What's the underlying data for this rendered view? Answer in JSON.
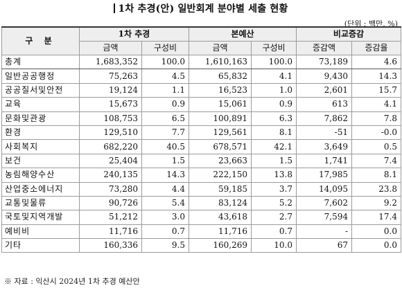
{
  "title": "1차 추경(안) 일반회계 분야별 세출 현황",
  "unit": "(단위 : 백만, %)",
  "headers": {
    "category": "구 분",
    "group1": "1차 추경",
    "group2": "본예산",
    "group3": "비교증감",
    "sub": [
      "금액",
      "구성비",
      "금액",
      "구성비",
      "증감액",
      "증감율"
    ]
  },
  "rows": [
    {
      "label": "총계",
      "v": [
        "1,683,352",
        "100.0",
        "1,610,163",
        "100.0",
        "73,189",
        "4.6"
      ]
    },
    {
      "label": "일반공공행정",
      "v": [
        "75,263",
        "4.5",
        "65,832",
        "4.1",
        "9,430",
        "14.3"
      ]
    },
    {
      "label": "공공질서및안전",
      "v": [
        "19,124",
        "1.1",
        "16,523",
        "1.0",
        "2,601",
        "15.7"
      ]
    },
    {
      "label": "교육",
      "v": [
        "15,673",
        "0.9",
        "15,061",
        "0.9",
        "613",
        "4.1"
      ]
    },
    {
      "label": "문화및관광",
      "v": [
        "108,753",
        "6.5",
        "100,891",
        "6.3",
        "7,862",
        "7.8"
      ]
    },
    {
      "label": "환경",
      "v": [
        "129,510",
        "7.7",
        "129,561",
        "8.1",
        "-51",
        "-0.0"
      ]
    },
    {
      "label": "사회복지",
      "v": [
        "682,220",
        "40.5",
        "678,571",
        "42.1",
        "3,649",
        "0.5"
      ]
    },
    {
      "label": "보건",
      "v": [
        "25,404",
        "1.5",
        "23,663",
        "1.5",
        "1,741",
        "7.4"
      ]
    },
    {
      "label": "농림해양수산",
      "v": [
        "240,135",
        "14.3",
        "222,150",
        "13.8",
        "17,985",
        "8.1"
      ]
    },
    {
      "label": "산업중소에너지",
      "v": [
        "73,280",
        "4.4",
        "59,185",
        "3.7",
        "14,095",
        "23.8"
      ]
    },
    {
      "label": "교통및물류",
      "v": [
        "90,726",
        "5.4",
        "83,124",
        "5.2",
        "7,602",
        "9.2"
      ]
    },
    {
      "label": "국토및지역개발",
      "v": [
        "51,212",
        "3.0",
        "43,618",
        "2.7",
        "7,594",
        "17.4"
      ]
    },
    {
      "label": "예비비",
      "v": [
        "11,716",
        "0.7",
        "11,716",
        "0.7",
        "-",
        "0.0"
      ]
    },
    {
      "label": "기타",
      "v": [
        "160,336",
        "9.5",
        "160,269",
        "10.0",
        "67",
        "0.0"
      ]
    }
  ],
  "source": "※ 자료 : 익산시 2024년 1차 추경 예산안"
}
